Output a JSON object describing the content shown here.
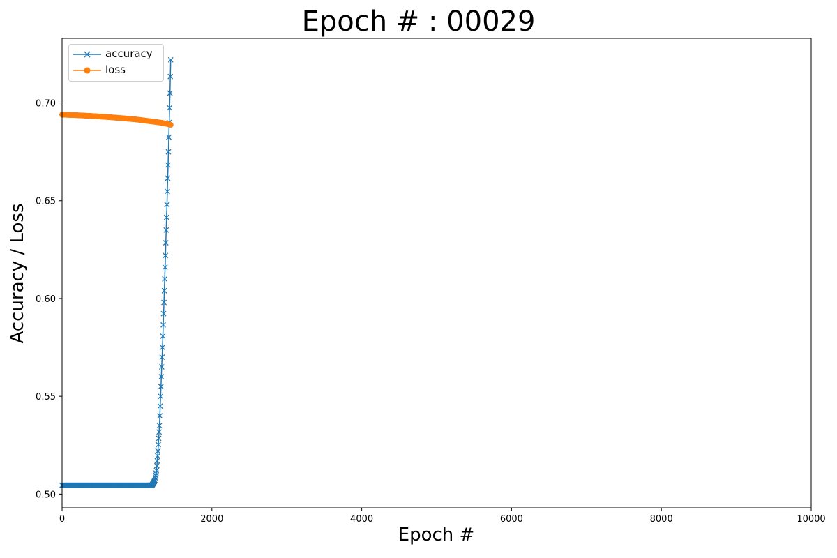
{
  "chart_data": {
    "type": "line",
    "title": "Epoch # : 00029",
    "xlabel": "Epoch #",
    "ylabel": "Accuracy / Loss",
    "xlim": [
      0,
      10000
    ],
    "ylim": [
      0.493,
      0.733
    ],
    "xticks": [
      0,
      2000,
      4000,
      6000,
      8000,
      10000
    ],
    "xtick_labels": [
      "0",
      "2000",
      "4000",
      "6000",
      "8000",
      "10000"
    ],
    "yticks": [
      0.5,
      0.55,
      0.6,
      0.65,
      0.7
    ],
    "ytick_labels": [
      "0.50",
      "0.55",
      "0.60",
      "0.65",
      "0.70"
    ],
    "grid": false,
    "legend_position": "upper-left",
    "series": [
      {
        "name": "accuracy",
        "color": "#1f77b4",
        "marker": "x",
        "x": [
          0,
          200,
          400,
          600,
          800,
          1000,
          1200,
          1240,
          1260,
          1280,
          1300,
          1320,
          1340,
          1360,
          1380,
          1400,
          1420,
          1440,
          1450
        ],
        "y": [
          0.5045,
          0.5045,
          0.5045,
          0.5045,
          0.5045,
          0.5045,
          0.5045,
          0.507,
          0.512,
          0.522,
          0.535,
          0.555,
          0.575,
          0.598,
          0.622,
          0.648,
          0.675,
          0.705,
          0.722
        ]
      },
      {
        "name": "loss",
        "color": "#ff7f0e",
        "marker": "o",
        "x": [
          0,
          200,
          400,
          600,
          800,
          1000,
          1200,
          1300,
          1400,
          1450
        ],
        "y": [
          0.694,
          0.6937,
          0.6933,
          0.6928,
          0.6922,
          0.6915,
          0.6905,
          0.69,
          0.6893,
          0.6888
        ]
      }
    ]
  }
}
